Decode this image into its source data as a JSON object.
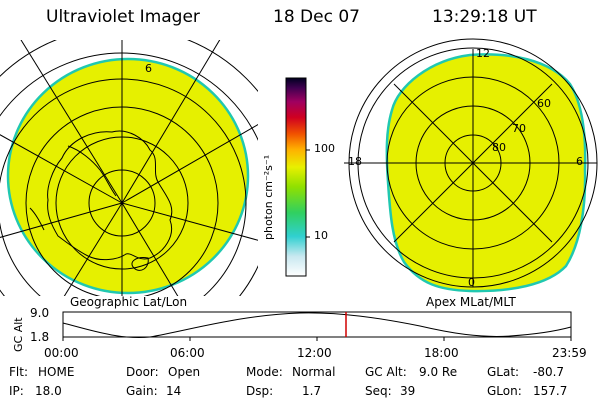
{
  "header": {
    "instrument": "Ultraviolet Imager",
    "date": "18 Dec 07",
    "time": "13:29:18 UT"
  },
  "colorbar": {
    "unit_label": "photon cm⁻²s⁻¹",
    "ticks": [
      "100",
      "10"
    ]
  },
  "left_map": {
    "label": "Geographic Lat/Lon"
  },
  "right_map": {
    "label": "Apex MLat/MLT",
    "mlt_labels": {
      "top": "12",
      "left": "18",
      "right": "6",
      "bottom": "0"
    },
    "lat_labels": [
      "60",
      "70",
      "80"
    ]
  },
  "altitude_plot": {
    "ylabel": "GC Alt",
    "y_ticks": [
      "9.0",
      "1.8"
    ],
    "x_ticks": [
      "00:00",
      "06:00",
      "12:00",
      "18:00",
      "23:59"
    ]
  },
  "status": {
    "flt_label": "Flt:",
    "flt_value": "HOME",
    "ip_label": "IP:",
    "ip_value": "18.0",
    "door_label": "Door:",
    "door_value": "Open",
    "gain_label": "Gain:",
    "gain_value": "14",
    "mode_label": "Mode:",
    "mode_value": "Normal",
    "dsp_label": "Dsp:",
    "dsp_value": "1.7",
    "gcalt_label": "GC Alt:",
    "gcalt_value": "9.0 Re",
    "seq_label": "Seq:",
    "seq_value": "39",
    "glat_label": "GLat:",
    "glat_value": "-80.7",
    "glon_label": "GLon:",
    "glon_value": "157.7"
  },
  "colors": {
    "image_fill": "#e6f000",
    "image_edge": "#20c8b0",
    "marker": "#d00000"
  }
}
